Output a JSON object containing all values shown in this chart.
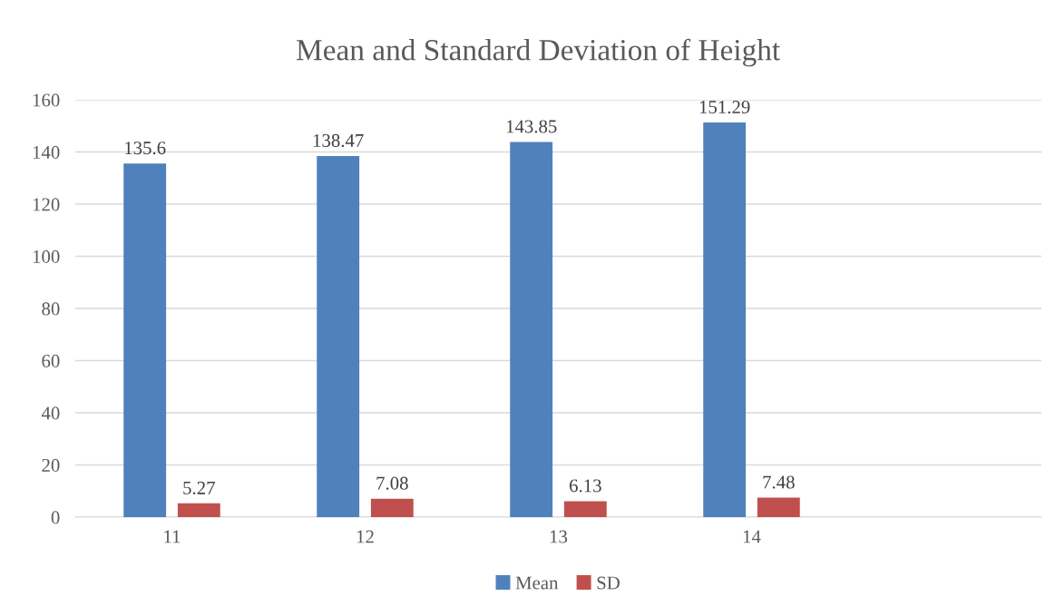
{
  "chart_data": {
    "type": "bar",
    "title": "Mean and Standard Deviation of Height",
    "categories": [
      "11",
      "12",
      "13",
      "14",
      null
    ],
    "series": [
      {
        "name": "Mean",
        "color": "#4f81bd",
        "values": [
          135.6,
          138.47,
          143.85,
          151.29,
          null
        ]
      },
      {
        "name": "SD",
        "color": "#c0504d",
        "values": [
          5.27,
          7.08,
          6.13,
          7.48,
          null
        ]
      }
    ],
    "ylim": [
      0,
      160
    ],
    "yticks": [
      0,
      20,
      40,
      60,
      80,
      100,
      120,
      140,
      160
    ],
    "grid": "y",
    "legend": "bottom",
    "data_labels": true
  }
}
